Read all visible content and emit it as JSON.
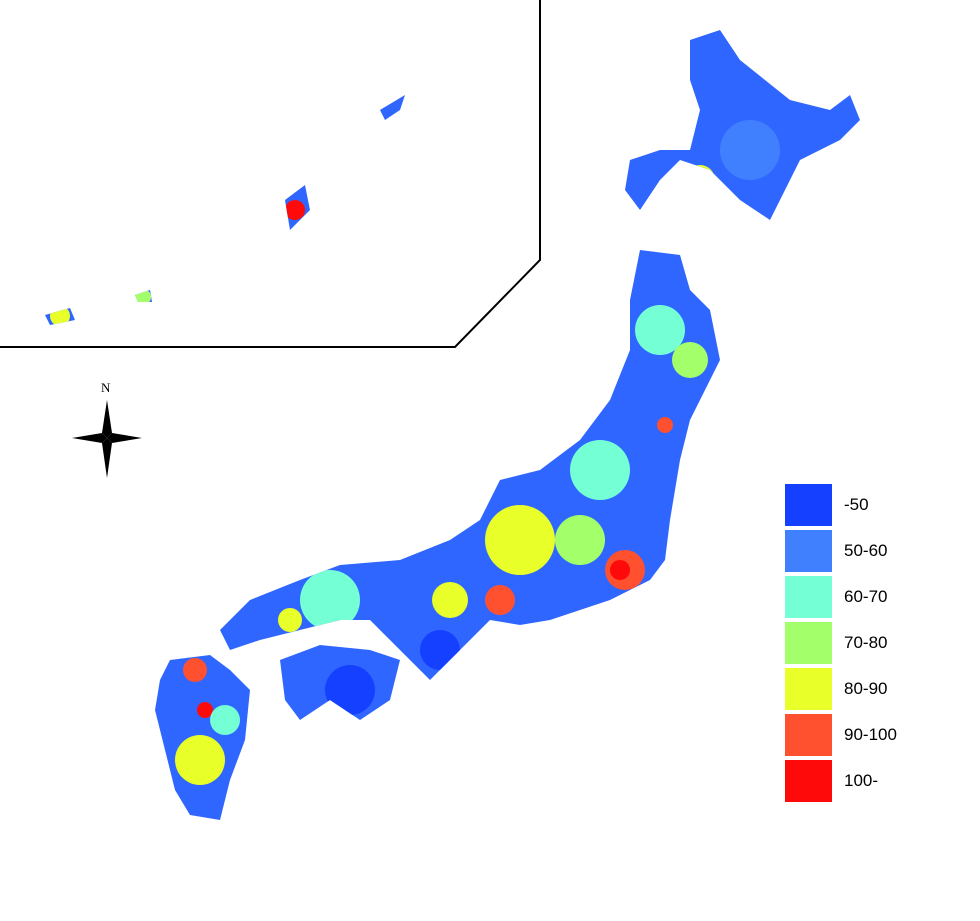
{
  "map": {
    "compass_label": "N",
    "legend": [
      {
        "label": "-50",
        "color": "#1540ff"
      },
      {
        "label": "50-60",
        "color": "#4080ff"
      },
      {
        "label": "60-70",
        "color": "#75ffd5"
      },
      {
        "label": "70-80",
        "color": "#a3ff6a"
      },
      {
        "label": "80-90",
        "color": "#e8ff2a"
      },
      {
        "label": "90-100",
        "color": "#ff5030"
      },
      {
        "label": "100-",
        "color": "#ff0a0a"
      }
    ]
  }
}
